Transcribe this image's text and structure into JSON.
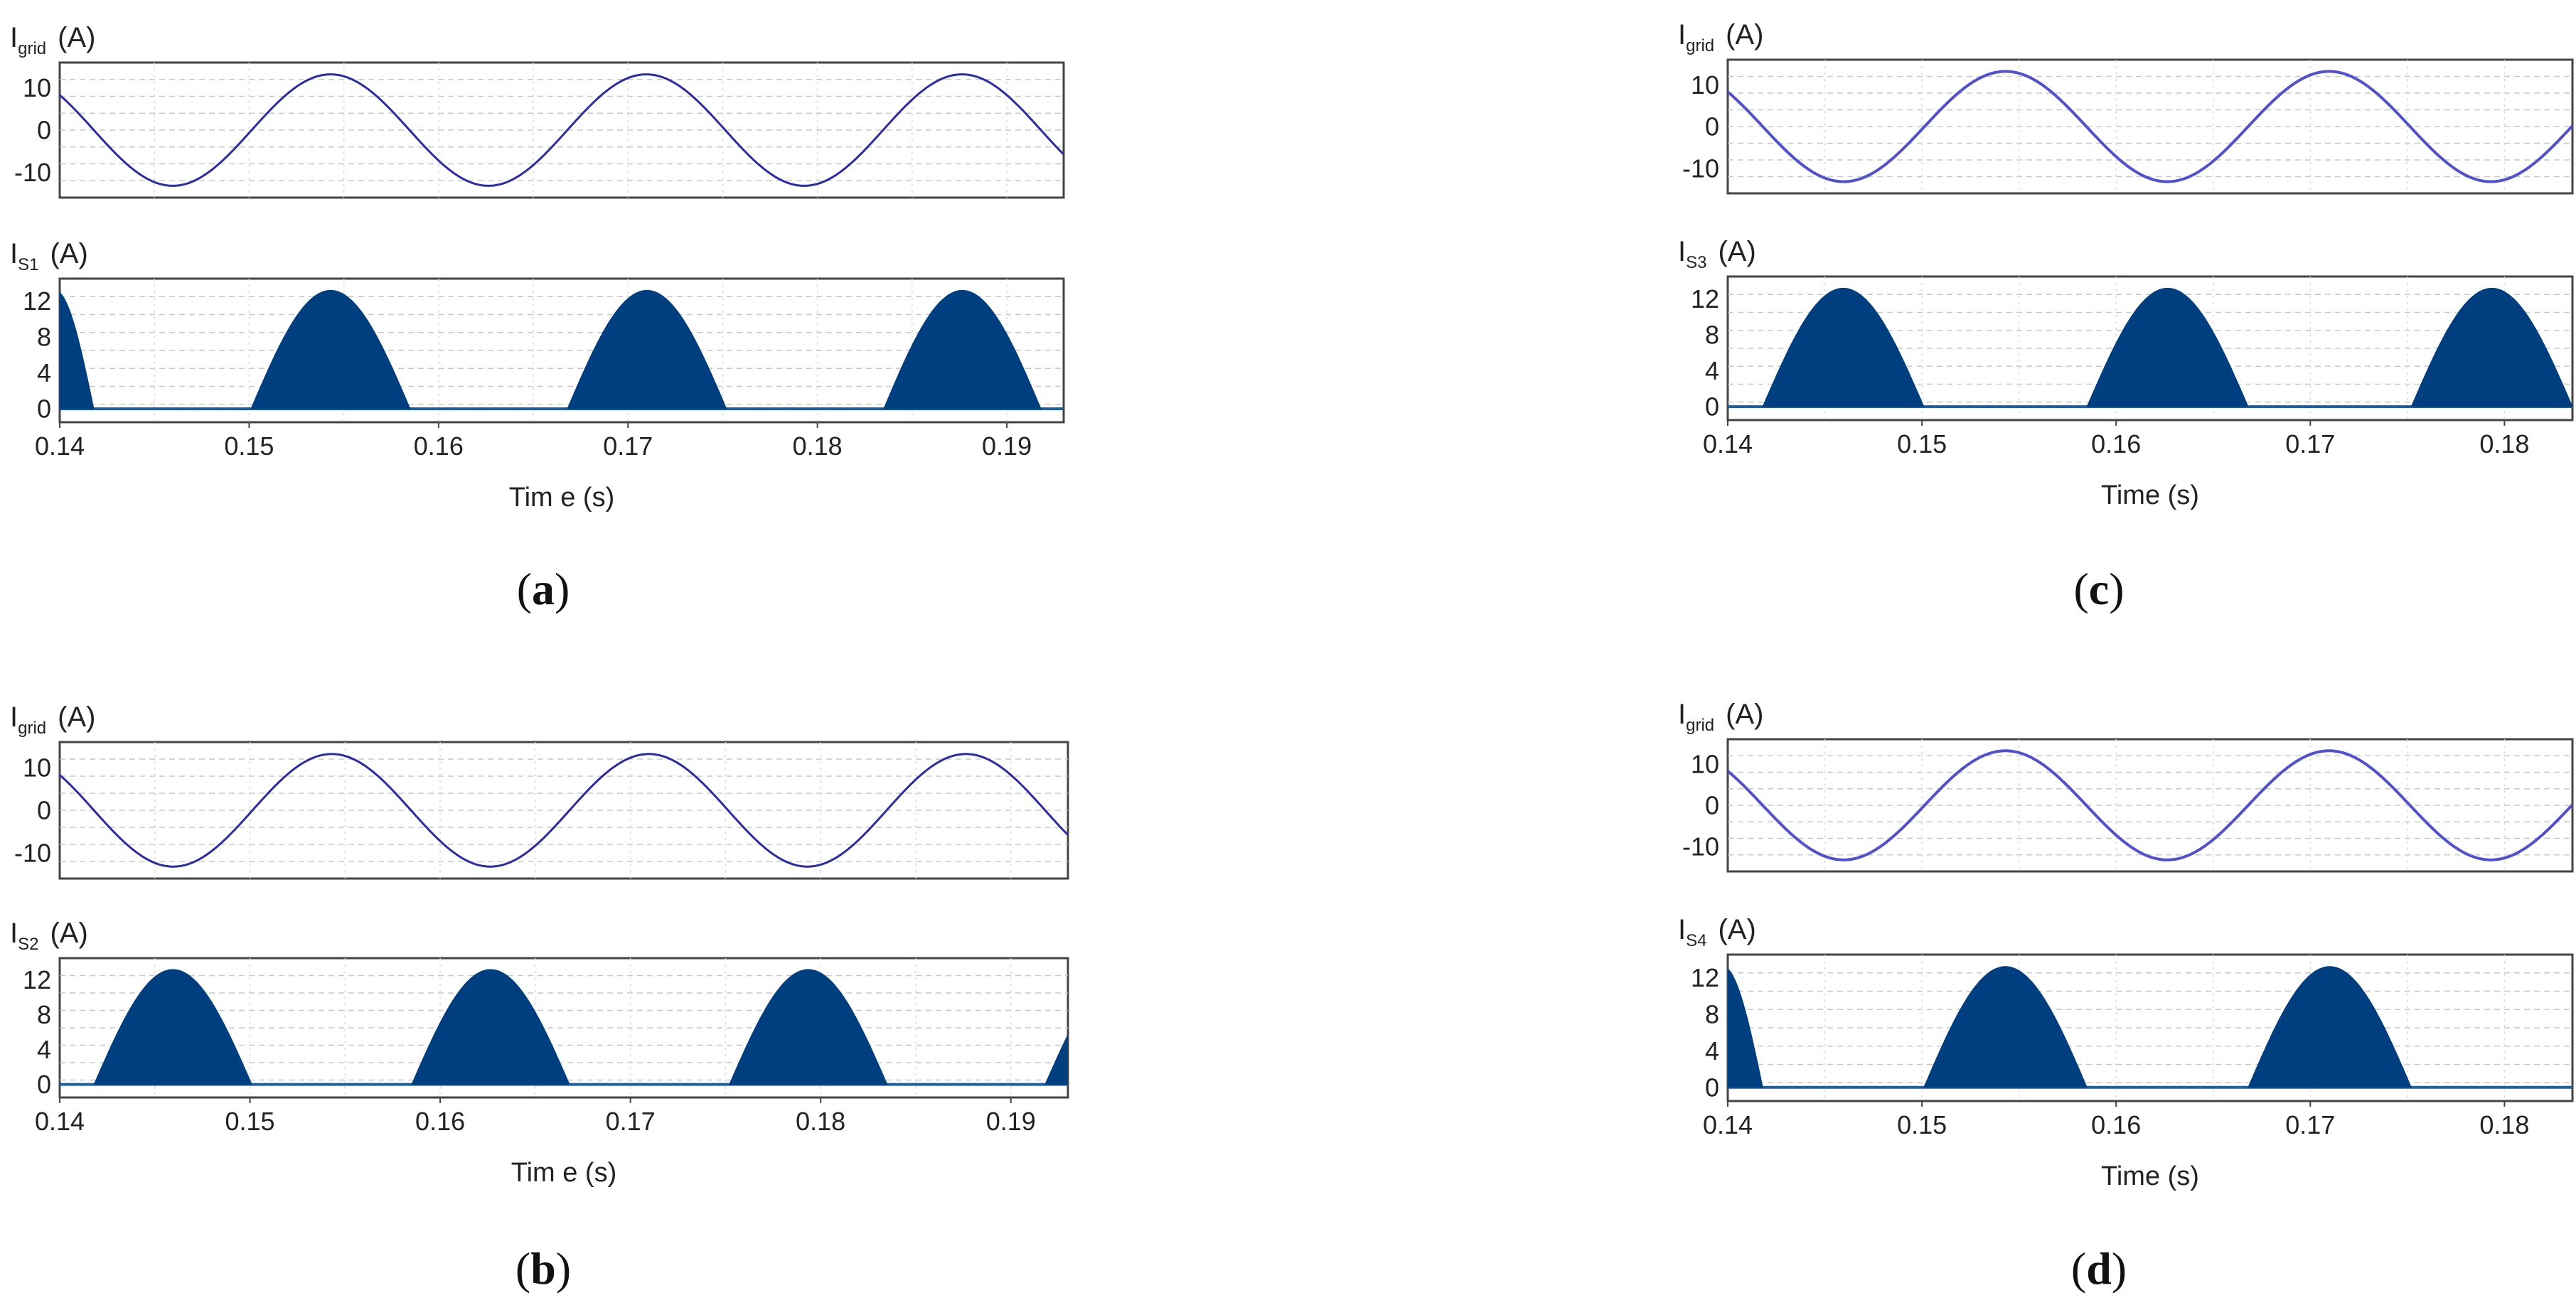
{
  "figure": {
    "panels": [
      {
        "id": "a",
        "caption": {
          "open": "(",
          "letter": "a",
          "close": ")"
        },
        "xlabel": "Tim e (s)",
        "xlim": [
          0.14,
          0.193
        ],
        "xticks": [
          "0.14",
          "0.15",
          "0.16",
          "0.17",
          "0.18",
          "0.19"
        ],
        "top": {
          "label_main": "I",
          "label_sub": "grid",
          "label_unit": "(A)",
          "ylim": [
            -16,
            16
          ],
          "yticks": [
            "10",
            "0",
            "-10"
          ],
          "ytick_values": [
            10,
            0,
            -10
          ]
        },
        "bottom": {
          "label_main": "I",
          "label_sub": "S1",
          "label_unit": "(A)",
          "ylim": [
            -1.5,
            14.5
          ],
          "yticks": [
            "12",
            "8",
            "4",
            "0"
          ],
          "ytick_values": [
            12,
            8,
            4,
            0
          ]
        }
      },
      {
        "id": "b",
        "caption": {
          "open": "(",
          "letter": "b",
          "close": ")"
        },
        "xlabel": "Tim e (s)",
        "xlim": [
          0.14,
          0.193
        ],
        "xticks": [
          "0.14",
          "0.15",
          "0.16",
          "0.17",
          "0.18",
          "0.19"
        ],
        "top": {
          "label_main": "I",
          "label_sub": "grid",
          "label_unit": "(A)",
          "ylim": [
            -16,
            16
          ],
          "yticks": [
            "10",
            "0",
            "-10"
          ],
          "ytick_values": [
            10,
            0,
            -10
          ]
        },
        "bottom": {
          "label_main": "I",
          "label_sub": "S2",
          "label_unit": "(A)",
          "ylim": [
            -1.5,
            14.5
          ],
          "yticks": [
            "12",
            "8",
            "4",
            "0"
          ],
          "ytick_values": [
            12,
            8,
            4,
            0
          ]
        }
      },
      {
        "id": "c",
        "caption": {
          "open": "(",
          "letter": "c",
          "close": ")"
        },
        "xlabel": "Time (s)",
        "xlim": [
          0.14,
          0.1835
        ],
        "xticks": [
          "0.14",
          "0.15",
          "0.16",
          "0.17",
          "0.18"
        ],
        "top": {
          "label_main": "I",
          "label_sub": "grid",
          "label_unit": "(A)",
          "ylim": [
            -16,
            16
          ],
          "yticks": [
            "10",
            "0",
            "-10"
          ],
          "ytick_values": [
            10,
            0,
            -10
          ]
        },
        "bottom": {
          "label_main": "I",
          "label_sub": "S3",
          "label_unit": "(A)",
          "ylim": [
            -1.5,
            14.5
          ],
          "yticks": [
            "12",
            "8",
            "4",
            "0"
          ],
          "ytick_values": [
            12,
            8,
            4,
            0
          ]
        }
      },
      {
        "id": "d",
        "caption": {
          "open": "(",
          "letter": "d",
          "close": ")"
        },
        "xlabel": "Time (s)",
        "xlim": [
          0.14,
          0.1835
        ],
        "xticks": [
          "0.14",
          "0.15",
          "0.16",
          "0.17",
          "0.18"
        ],
        "top": {
          "label_main": "I",
          "label_sub": "grid",
          "label_unit": "(A)",
          "ylim": [
            -16,
            16
          ],
          "yticks": [
            "10",
            "0",
            "-10"
          ],
          "ytick_values": [
            10,
            0,
            -10
          ]
        },
        "bottom": {
          "label_main": "I",
          "label_sub": "S4",
          "label_unit": "(A)",
          "ylim": [
            -1.5,
            14.5
          ],
          "yticks": [
            "12",
            "8",
            "4",
            "0"
          ],
          "ytick_values": [
            12,
            8,
            4,
            0
          ]
        }
      }
    ]
  },
  "chart_data": [
    {
      "type": "line",
      "panel": "a",
      "plot": "top",
      "title": "",
      "xlabel": "",
      "ylabel": "Igrid (A)",
      "xlim": [
        0.14,
        0.193
      ],
      "ylim": [
        -16,
        16
      ],
      "grid": true,
      "series": [
        {
          "amplitude": 13.2,
          "frequency_hz": 60,
          "peak_times": [
            0.1543,
            0.171,
            0.1877
          ],
          "start_value": 9.5
        }
      ],
      "color": "#2b2ba8"
    },
    {
      "type": "area",
      "panel": "a",
      "plot": "bottom",
      "title": "",
      "xlabel": "Tim e (s)",
      "ylabel": "IS1 (A)",
      "xlim": [
        0.14,
        0.193
      ],
      "ylim": [
        -1.5,
        14.5
      ],
      "grid": true,
      "series": [
        {
          "peak": 13.2,
          "pulses": [
            [
              0.1377,
              0.1418
            ],
            [
              0.1501,
              0.1585
            ],
            [
              0.1668,
              0.1752
            ],
            [
              0.1835,
              0.1918
            ]
          ]
        }
      ],
      "color": "#003f7f"
    },
    {
      "type": "line",
      "panel": "b",
      "plot": "top",
      "title": "",
      "xlabel": "",
      "ylabel": "Igrid (A)",
      "xlim": [
        0.14,
        0.193
      ],
      "ylim": [
        -16,
        16
      ],
      "grid": true,
      "series": [
        {
          "amplitude": 13.2,
          "frequency_hz": 60,
          "peak_times": [
            0.1543,
            0.171,
            0.1877
          ],
          "start_value": 9.5
        }
      ],
      "color": "#2b2ba8"
    },
    {
      "type": "area",
      "panel": "b",
      "plot": "bottom",
      "title": "",
      "xlabel": "Tim e (s)",
      "ylabel": "IS2 (A)",
      "xlim": [
        0.14,
        0.193
      ],
      "ylim": [
        -1.5,
        14.5
      ],
      "grid": true,
      "series": [
        {
          "peak": 13.2,
          "pulses": [
            [
              0.1418,
              0.1501
            ],
            [
              0.1585,
              0.1668
            ],
            [
              0.1752,
              0.1835
            ],
            [
              0.1918,
              0.2002
            ]
          ]
        }
      ],
      "color": "#003f7f"
    },
    {
      "type": "line",
      "panel": "c",
      "plot": "top",
      "title": "",
      "xlabel": "",
      "ylabel": "Igrid (A)",
      "xlim": [
        0.14,
        0.1835
      ],
      "ylim": [
        -16,
        16
      ],
      "grid": true,
      "series": [
        {
          "amplitude": 13.2,
          "frequency_hz": 60,
          "peak_times": [
            0.1543,
            0.171
          ],
          "start_value": 9.5
        }
      ],
      "color": "#5050d0"
    },
    {
      "type": "area",
      "panel": "c",
      "plot": "bottom",
      "title": "",
      "xlabel": "Time (s)",
      "ylabel": "IS3 (A)",
      "xlim": [
        0.14,
        0.1835
      ],
      "ylim": [
        -1.5,
        14.5
      ],
      "grid": true,
      "series": [
        {
          "peak": 13.2,
          "pulses": [
            [
              0.1418,
              0.1501
            ],
            [
              0.1585,
              0.1668
            ],
            [
              0.1752,
              0.1835
            ]
          ]
        }
      ],
      "color": "#003f7f"
    },
    {
      "type": "line",
      "panel": "d",
      "plot": "top",
      "title": "",
      "xlabel": "",
      "ylabel": "Igrid (A)",
      "xlim": [
        0.14,
        0.1835
      ],
      "ylim": [
        -16,
        16
      ],
      "grid": true,
      "series": [
        {
          "amplitude": 13.2,
          "frequency_hz": 60,
          "peak_times": [
            0.1543,
            0.171
          ],
          "start_value": 9.5
        }
      ],
      "color": "#5050d0"
    },
    {
      "type": "area",
      "panel": "d",
      "plot": "bottom",
      "title": "",
      "xlabel": "Time (s)",
      "ylabel": "IS4 (A)",
      "xlim": [
        0.14,
        0.1835
      ],
      "ylim": [
        -1.5,
        14.5
      ],
      "grid": true,
      "series": [
        {
          "peak": 13.2,
          "pulses": [
            [
              0.1377,
              0.1418
            ],
            [
              0.1501,
              0.1585
            ],
            [
              0.1668,
              0.1752
            ]
          ]
        }
      ],
      "color": "#003f7f"
    }
  ]
}
